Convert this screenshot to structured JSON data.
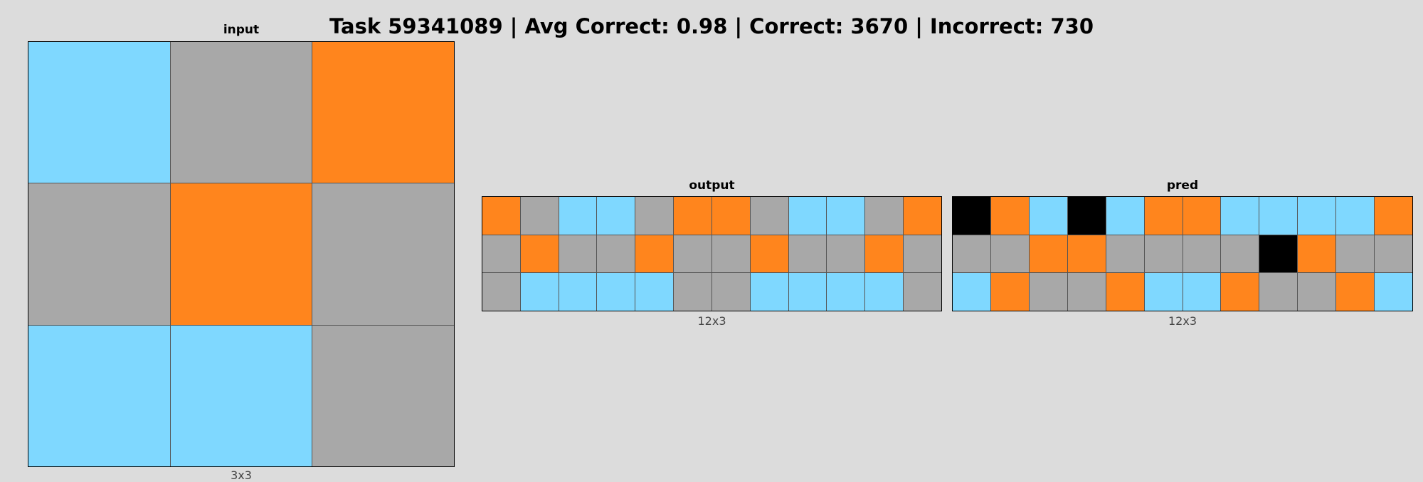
{
  "title": "Task 59341089 | Avg Correct: 0.98 | Correct: 3670 | Incorrect: 730",
  "palette": {
    "C": "#7fd8ff",
    "G": "#a8a8a8",
    "O": "#ff851d",
    "K": "#000000"
  },
  "panels": {
    "input": {
      "label": "input",
      "dims": "3x3",
      "rows": [
        "CGO",
        "GOG",
        "CCG"
      ]
    },
    "output": {
      "label": "output",
      "dims": "12x3",
      "rows": [
        "OGCCGOOGCCGO",
        "GOGGOGGOGGOG",
        "GCCCCGGCCCCG"
      ]
    },
    "pred": {
      "label": "pred",
      "dims": "12x3",
      "rows": [
        "KOCKCOOCCCCO",
        "GGOOGGGGKOGG",
        "COGGOCCOGGOC"
      ]
    }
  }
}
